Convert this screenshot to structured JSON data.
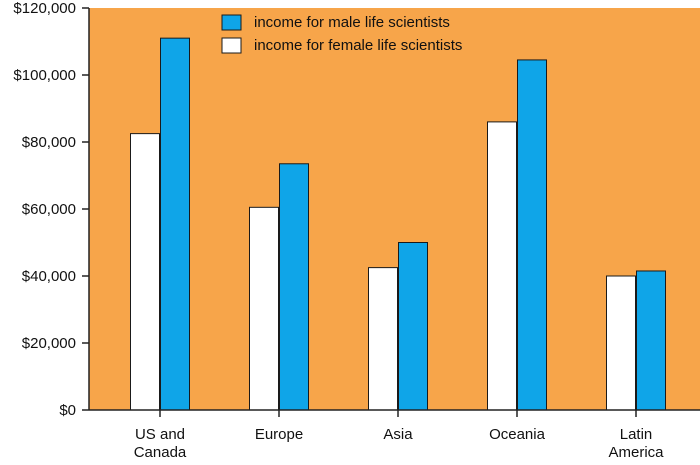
{
  "colors": {
    "plot_background": "#f7a54a",
    "male_bar": "#0fa5e8",
    "female_bar": "#ffffff",
    "bar_outline": "#1a1a1a",
    "axis": "#222222"
  },
  "chart_data": {
    "type": "bar",
    "title": "",
    "xlabel": "",
    "ylabel": "",
    "ylim": [
      0,
      120000
    ],
    "yticks": [
      0,
      20000,
      40000,
      60000,
      80000,
      100000,
      120000
    ],
    "ytick_labels": [
      "$0",
      "$20,000",
      "$40,000",
      "$60,000",
      "$80,000",
      "$100,000",
      "$120,000"
    ],
    "categories": [
      [
        "US and",
        "Canada"
      ],
      [
        "Europe"
      ],
      [
        "Asia"
      ],
      [
        "Oceania"
      ],
      [
        "Latin",
        "America"
      ]
    ],
    "series": [
      {
        "name": "income for female life scientists",
        "color_key": "female_bar",
        "values": [
          82500,
          60500,
          42500,
          86000,
          40000
        ]
      },
      {
        "name": "income for male life scientists",
        "color_key": "male_bar",
        "values": [
          111000,
          73500,
          50000,
          104500,
          41500
        ]
      }
    ],
    "legend": {
      "position": "top-center",
      "order": [
        "income for male life scientists",
        "income for female life scientists"
      ]
    },
    "grid": false
  }
}
